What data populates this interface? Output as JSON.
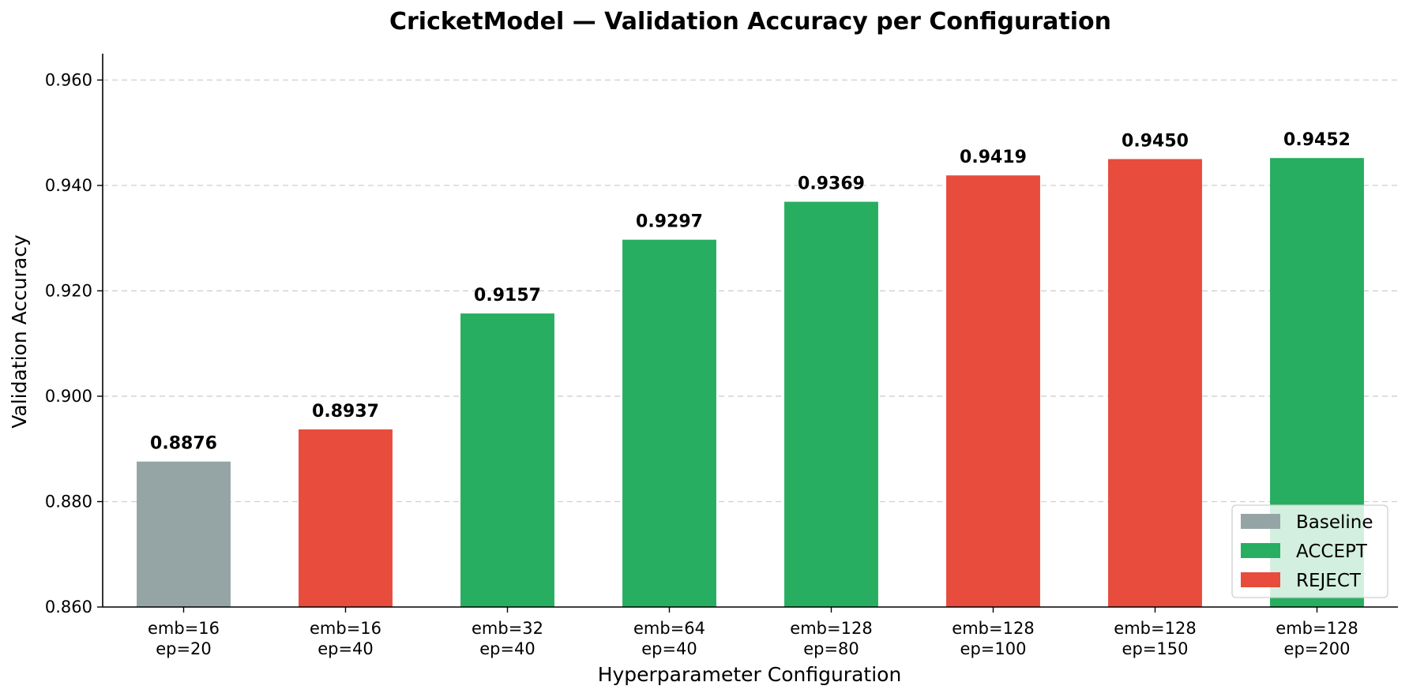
{
  "chart_data": {
    "type": "bar",
    "title": "CricketModel — Validation Accuracy per Configuration",
    "xlabel": "Hyperparameter Configuration",
    "ylabel": "Validation Accuracy",
    "ylim": [
      0.86,
      0.965
    ],
    "yticks": [
      0.86,
      0.88,
      0.9,
      0.92,
      0.94,
      0.96
    ],
    "ytick_labels": [
      "0.860",
      "0.880",
      "0.900",
      "0.920",
      "0.940",
      "0.960"
    ],
    "grid": "horizontal dashed",
    "legend_position": "bottom-right",
    "categories": [
      [
        "emb=16",
        "ep=20"
      ],
      [
        "emb=16",
        "ep=40"
      ],
      [
        "emb=32",
        "ep=40"
      ],
      [
        "emb=64",
        "ep=40"
      ],
      [
        "emb=128",
        "ep=80"
      ],
      [
        "emb=128",
        "ep=100"
      ],
      [
        "emb=128",
        "ep=150"
      ],
      [
        "emb=128",
        "ep=200"
      ]
    ],
    "values": [
      0.8876,
      0.8937,
      0.9157,
      0.9297,
      0.9369,
      0.9419,
      0.945,
      0.9452
    ],
    "value_labels": [
      "0.8876",
      "0.8937",
      "0.9157",
      "0.9297",
      "0.9369",
      "0.9419",
      "0.9450",
      "0.9452"
    ],
    "status": [
      "Baseline",
      "REJECT",
      "ACCEPT",
      "ACCEPT",
      "ACCEPT",
      "REJECT",
      "REJECT",
      "ACCEPT"
    ],
    "legend": [
      {
        "label": "Baseline",
        "color": "#95a5a6"
      },
      {
        "label": "ACCEPT",
        "color": "#27ae60"
      },
      {
        "label": "REJECT",
        "color": "#e74c3c"
      }
    ]
  }
}
